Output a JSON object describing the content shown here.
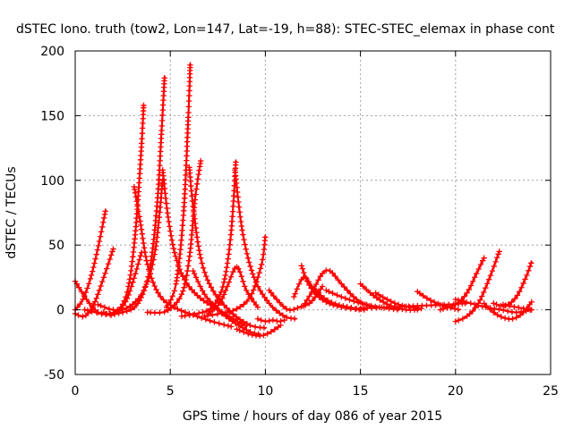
{
  "chart_data": {
    "type": "scatter",
    "title": "dSTEC Iono. truth (tow2, Lon=147, Lat=-19, h=88): STEC-STEC_elemax in phase cont",
    "xlabel": "GPS time / hours of day 086 of year 2015",
    "ylabel": "dSTEC  / TECUs",
    "xlim": [
      0,
      25
    ],
    "ylim": [
      -50,
      200
    ],
    "xticks": [
      "0",
      "5",
      "10",
      "15",
      "20",
      "25"
    ],
    "yticks": [
      "-50",
      "0",
      "50",
      "100",
      "150",
      "200"
    ],
    "grid": true,
    "marker": "+",
    "color": "#ff0000",
    "series": [
      {
        "x": [
          0,
          0.4,
          0.8,
          1.2,
          1.6
        ],
        "y": [
          0,
          8,
          24,
          48,
          77
        ]
      },
      {
        "x": [
          0,
          0.5,
          1.0,
          1.5,
          2.0
        ],
        "y": [
          -3,
          -5,
          5,
          25,
          47
        ]
      },
      {
        "x": [
          0,
          0.6,
          1.2,
          1.8,
          2.4,
          2.8,
          3.1,
          3.3,
          3.5,
          3.6
        ],
        "y": [
          22,
          8,
          -2,
          -3,
          2,
          18,
          50,
          85,
          130,
          158
        ]
      },
      {
        "x": [
          1.5,
          2.0,
          2.6,
          3.0,
          3.5
        ],
        "y": [
          -2,
          -4,
          5,
          20,
          45
        ]
      },
      {
        "x": [
          3.1,
          3.4,
          3.8,
          4.4,
          5.2,
          6.2,
          7.2,
          8.2
        ],
        "y": [
          95,
          70,
          35,
          12,
          2,
          -4,
          -9,
          -13
        ]
      },
      {
        "x": [
          0.5,
          1.5,
          2.5,
          3.3,
          3.9,
          4.3,
          4.55,
          4.7
        ],
        "y": [
          0,
          -3,
          -2,
          5,
          30,
          80,
          140,
          180
        ]
      },
      {
        "x": [
          4.6,
          4.9,
          5.3,
          5.8,
          6.5,
          7.3,
          8.2,
          9.0
        ],
        "y": [
          108,
          70,
          40,
          22,
          10,
          2,
          -6,
          -13
        ]
      },
      {
        "x": [
          1.2,
          2.0,
          2.8,
          3.6,
          4.2,
          4.6
        ],
        "y": [
          4,
          0,
          2,
          15,
          45,
          100
        ]
      },
      {
        "x": [
          3.8,
          4.8,
          5.6,
          6.0,
          6.3,
          6.6
        ],
        "y": [
          -2,
          -1,
          12,
          40,
          85,
          115
        ]
      },
      {
        "x": [
          4.8,
          5.3,
          5.7,
          5.95,
          6.05
        ],
        "y": [
          2,
          20,
          75,
          150,
          190
        ]
      },
      {
        "x": [
          6.0,
          6.2,
          6.6,
          7.2,
          8.2,
          9.2,
          10.0
        ],
        "y": [
          110,
          80,
          40,
          16,
          -2,
          -12,
          -14
        ]
      },
      {
        "x": [
          6.2,
          6.8,
          7.4,
          8.0,
          8.6,
          9.2,
          9.7
        ],
        "y": [
          30,
          12,
          2,
          -6,
          -12,
          -17,
          -19
        ]
      },
      {
        "x": [
          5.6,
          6.4,
          7.2,
          7.8,
          8.2,
          8.45
        ],
        "y": [
          -5,
          -3,
          2,
          20,
          60,
          115
        ]
      },
      {
        "x": [
          8.4,
          8.8,
          9.4,
          10.2,
          11.0,
          11.6
        ],
        "y": [
          108,
          60,
          25,
          5,
          -5,
          -7
        ]
      },
      {
        "x": [
          6.8,
          7.6,
          8.4,
          9.2,
          9.8,
          10.0
        ],
        "y": [
          -5,
          -3,
          0,
          10,
          35,
          57
        ]
      },
      {
        "x": [
          7.0,
          7.6,
          8.0,
          8.5,
          9.0,
          9.6
        ],
        "y": [
          -3,
          5,
          18,
          33,
          15,
          2
        ]
      },
      {
        "x": [
          8.5,
          9.2,
          9.8,
          10.3,
          10.8
        ],
        "y": [
          -15,
          -19,
          -20,
          -17,
          -12
        ]
      },
      {
        "x": [
          9.6,
          10.0,
          10.4,
          10.7,
          11.0
        ],
        "y": [
          -7,
          -9,
          -8,
          -9,
          -8
        ]
      },
      {
        "x": [
          10.2,
          10.6,
          11.2,
          11.8,
          12.4,
          13.0
        ],
        "y": [
          15,
          8,
          0,
          2,
          6,
          18
        ]
      },
      {
        "x": [
          11.5,
          12.0,
          12.5,
          13.0,
          13.6,
          14.4,
          15.2
        ],
        "y": [
          10,
          25,
          17,
          10,
          5,
          2,
          0
        ]
      },
      {
        "x": [
          11.9,
          12.2,
          12.6,
          13.2,
          14.0,
          15.0
        ],
        "y": [
          34,
          22,
          13,
          6,
          2,
          0
        ]
      },
      {
        "x": [
          12.0,
          12.5,
          13.0,
          13.4,
          14.0,
          14.8,
          15.6
        ],
        "y": [
          3,
          15,
          28,
          30,
          20,
          8,
          2
        ]
      },
      {
        "x": [
          13.2,
          14.0,
          15.0,
          16.0,
          17.0
        ],
        "y": [
          15,
          10,
          5,
          2,
          0
        ]
      },
      {
        "x": [
          15.0,
          15.6,
          16.2,
          16.8,
          17.4,
          18.0
        ],
        "y": [
          20,
          12,
          6,
          2,
          0,
          0
        ]
      },
      {
        "x": [
          15.8,
          16.4,
          17.0,
          17.6,
          18.2
        ],
        "y": [
          13,
          8,
          4,
          2,
          1
        ]
      },
      {
        "x": [
          18.0,
          18.6,
          19.4,
          20.2
        ],
        "y": [
          14,
          8,
          3,
          0
        ]
      },
      {
        "x": [
          15.0,
          16.5,
          18.0,
          19.5,
          20.5
        ],
        "y": [
          1,
          2,
          3,
          4,
          5
        ]
      },
      {
        "x": [
          19.2,
          20.0,
          20.6,
          21.1,
          21.5
        ],
        "y": [
          0,
          4,
          13,
          28,
          40
        ]
      },
      {
        "x": [
          20.0,
          20.6,
          21.2,
          21.8,
          22.3
        ],
        "y": [
          -9,
          -5,
          5,
          25,
          45
        ]
      },
      {
        "x": [
          20.0,
          20.8,
          21.6,
          22.4,
          23.2,
          24.0
        ],
        "y": [
          8,
          5,
          2,
          0,
          -2,
          0
        ]
      },
      {
        "x": [
          21.5,
          22.0,
          22.5,
          23.0,
          23.5,
          24.0
        ],
        "y": [
          5,
          -2,
          -6,
          -7,
          -3,
          6
        ]
      },
      {
        "x": [
          22.0,
          22.6,
          23.2,
          23.7,
          24.0
        ],
        "y": [
          5,
          3,
          10,
          25,
          37
        ]
      },
      {
        "x": [
          22.5,
          23.2,
          24.0
        ],
        "y": [
          4,
          2,
          0
        ]
      }
    ]
  }
}
